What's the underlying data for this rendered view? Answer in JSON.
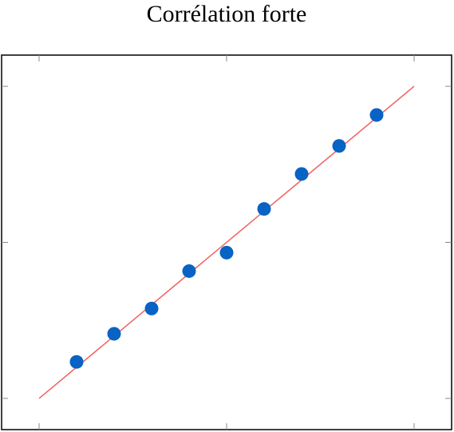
{
  "chart_data": {
    "type": "scatter",
    "title": "Corrélation forte",
    "xlim": [
      -1,
      11
    ],
    "ylim": [
      -1,
      11
    ],
    "xticks": [
      0,
      5,
      10
    ],
    "yticks": [
      0,
      5,
      10
    ],
    "series": [
      {
        "color": "#0863c4",
        "x": [
          1,
          2,
          3,
          4,
          5,
          6,
          7,
          8,
          9
        ],
        "values": [
          1.17,
          2.07,
          2.88,
          4.08,
          4.67,
          6.07,
          7.19,
          8.09,
          9.08
        ]
      }
    ],
    "fit_line": {
      "color": "#f06060",
      "x": [
        0,
        10
      ],
      "values": [
        0,
        10
      ]
    }
  }
}
